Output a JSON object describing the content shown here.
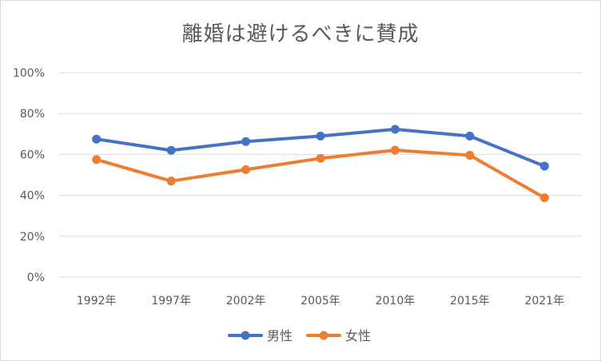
{
  "chart_data": {
    "type": "line",
    "title": "離婚は避けるべきに賛成",
    "categories": [
      "1992年",
      "1997年",
      "2002年",
      "2005年",
      "2010年",
      "2015年",
      "2021年"
    ],
    "y_ticks": [
      "0%",
      "20%",
      "40%",
      "60%",
      "80%",
      "100%"
    ],
    "ylim": [
      0,
      100
    ],
    "grid": true,
    "legend_position": "bottom",
    "series": [
      {
        "name": "男性",
        "color": "#4472C4",
        "values": [
          67.5,
          62,
          66.3,
          69,
          72.3,
          69,
          54.3
        ]
      },
      {
        "name": "女性",
        "color": "#ED7D31",
        "values": [
          57.5,
          47,
          52.6,
          58.1,
          62.1,
          59.6,
          38.8
        ]
      }
    ]
  }
}
